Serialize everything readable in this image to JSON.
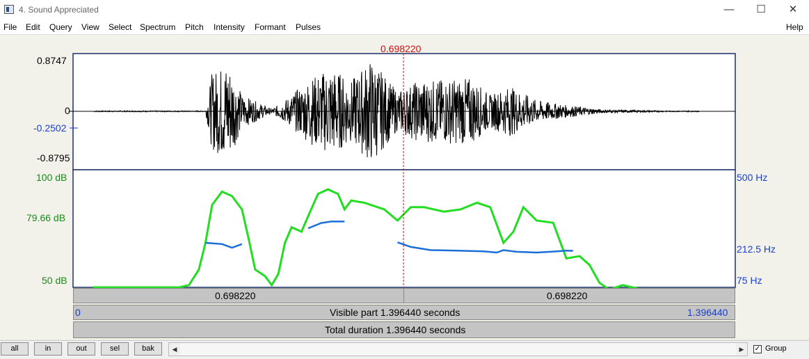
{
  "window": {
    "title": "4. Sound Appreciated",
    "minimize_glyph": "—",
    "maximize_glyph": "☐",
    "close_glyph": "✕"
  },
  "menu": {
    "items": [
      "File",
      "Edit",
      "Query",
      "View",
      "Select",
      "Spectrum",
      "Pitch",
      "Intensity",
      "Formant",
      "Pulses"
    ],
    "help": "Help"
  },
  "cursor": {
    "time_label": "0.698220",
    "time": 0.69822
  },
  "waveform": {
    "y_max_label": "0.8747",
    "y_zero_label": "0",
    "y_cursor_label": "-0.2502",
    "y_min_label": "-0.8795",
    "y_max": 0.8747,
    "y_min": -0.8795
  },
  "analysis": {
    "intensity_top_label": "100 dB",
    "intensity_mid_label": "79.66 dB",
    "intensity_bottom_label": "50 dB",
    "pitch_top_label": "500 Hz",
    "pitch_mid_label": "212.5 Hz",
    "pitch_bottom_label": "75 Hz",
    "intensity_range": [
      50,
      100
    ],
    "pitch_range": [
      75,
      500
    ],
    "intensity_color": "#22dd22",
    "pitch_color": "#1a6fd8",
    "intensity_curve": [
      [
        0.03,
        50
      ],
      [
        0.16,
        50
      ],
      [
        0.175,
        51
      ],
      [
        0.19,
        58
      ],
      [
        0.2,
        70
      ],
      [
        0.21,
        87
      ],
      [
        0.225,
        93
      ],
      [
        0.24,
        91
      ],
      [
        0.255,
        85
      ],
      [
        0.265,
        72
      ],
      [
        0.275,
        58
      ],
      [
        0.29,
        55
      ],
      [
        0.3,
        51
      ],
      [
        0.31,
        56
      ],
      [
        0.32,
        70
      ],
      [
        0.33,
        77
      ],
      [
        0.345,
        75
      ],
      [
        0.355,
        82
      ],
      [
        0.37,
        92
      ],
      [
        0.385,
        94
      ],
      [
        0.4,
        92
      ],
      [
        0.41,
        85
      ],
      [
        0.42,
        89
      ],
      [
        0.44,
        88
      ],
      [
        0.47,
        85
      ],
      [
        0.49,
        80
      ],
      [
        0.51,
        86
      ],
      [
        0.53,
        86
      ],
      [
        0.56,
        84
      ],
      [
        0.585,
        85
      ],
      [
        0.61,
        88
      ],
      [
        0.63,
        86
      ],
      [
        0.65,
        70
      ],
      [
        0.665,
        75
      ],
      [
        0.68,
        86
      ],
      [
        0.7,
        80
      ],
      [
        0.725,
        79
      ],
      [
        0.745,
        63
      ],
      [
        0.765,
        64
      ],
      [
        0.78,
        60
      ],
      [
        0.795,
        52
      ],
      [
        0.81,
        49
      ],
      [
        0.83,
        51
      ],
      [
        0.86,
        49
      ],
      [
        0.9,
        49
      ]
    ],
    "pitch_segments": [
      [
        [
          0.2,
          230
        ],
        [
          0.225,
          225
        ],
        [
          0.24,
          210
        ],
        [
          0.255,
          225
        ]
      ],
      [
        [
          0.355,
          290
        ],
        [
          0.375,
          312
        ],
        [
          0.39,
          318
        ],
        [
          0.41,
          318
        ]
      ],
      [
        [
          0.49,
          232
        ],
        [
          0.51,
          213
        ],
        [
          0.54,
          200
        ],
        [
          0.58,
          198
        ],
        [
          0.62,
          195
        ],
        [
          0.64,
          190
        ],
        [
          0.65,
          200
        ],
        [
          0.67,
          193
        ],
        [
          0.7,
          190
        ],
        [
          0.725,
          194
        ],
        [
          0.745,
          198
        ],
        [
          0.755,
          197
        ]
      ]
    ]
  },
  "time_bars": {
    "left_half_label": "0.698220",
    "right_half_label": "0.698220",
    "visible_start": "0",
    "visible_text": "Visible part 1.396440 seconds",
    "visible_end": "1.396440",
    "total_text": "Total duration 1.396440 seconds",
    "duration": 1.39644
  },
  "buttons": {
    "all": "all",
    "in": "in",
    "out": "out",
    "sel": "sel",
    "bak": "bak",
    "scroll_left": "◀",
    "scroll_right": "▶"
  },
  "group": {
    "label": "Group",
    "checked": true,
    "check_glyph": "✓"
  }
}
